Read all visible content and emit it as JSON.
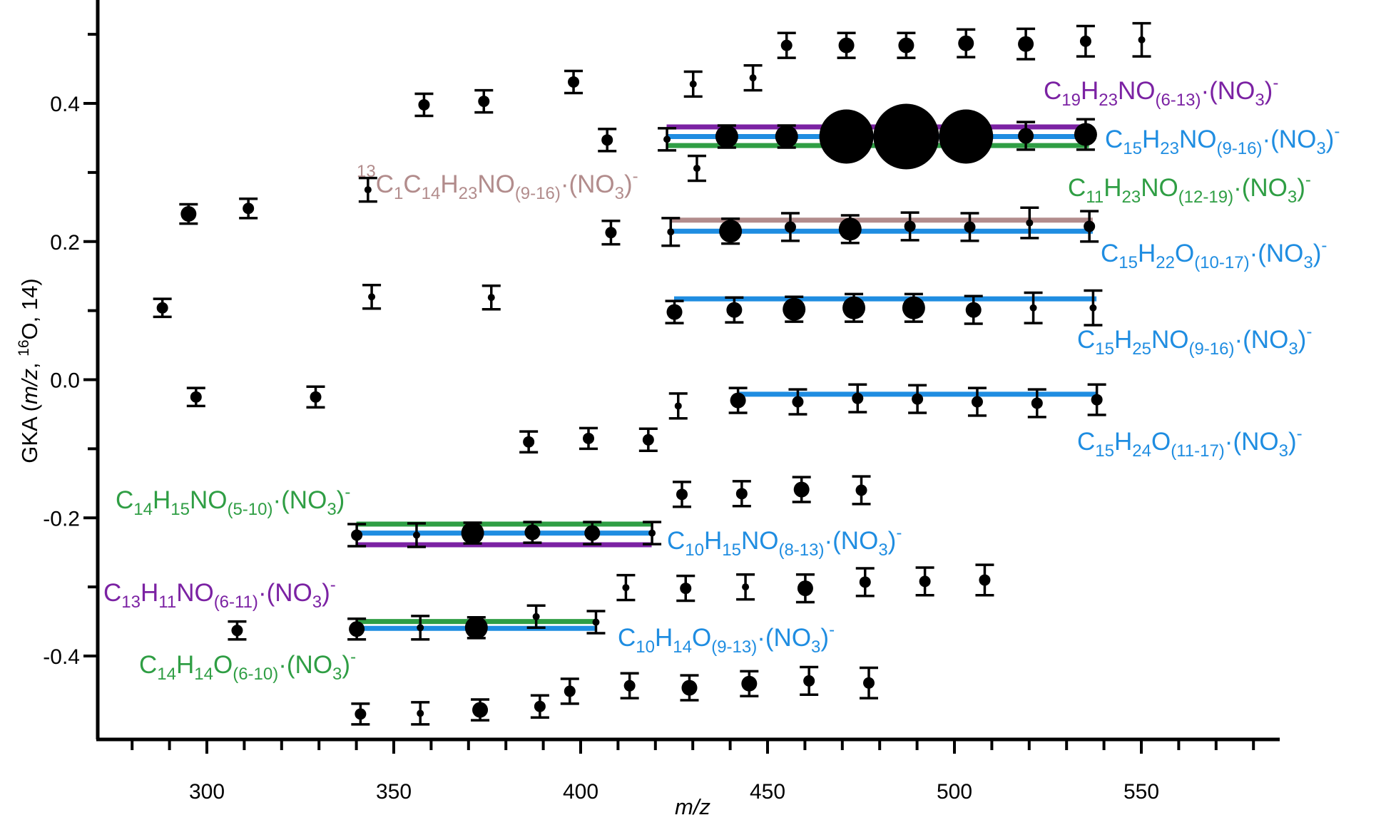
{
  "chart_data": {
    "type": "scatter",
    "xlabel": "m/z",
    "ylabel": "GKA (m/z, 16O, 14)",
    "xlim": [
      270,
      580
    ],
    "ylim": [
      -0.52,
      0.57
    ],
    "x_ticks": [
      300,
      350,
      400,
      450,
      500,
      550
    ],
    "y_ticks": [
      0.4,
      0.2,
      0.0,
      -0.2,
      -0.4
    ],
    "x_tick_labels": [
      "300",
      "350",
      "400",
      "450",
      "500",
      "550"
    ],
    "y_tick_labels": [
      "0.4",
      "0.2",
      "0.0",
      "-0.2",
      "-0.4"
    ],
    "points": [
      {
        "x": 288.1,
        "y": 0.104,
        "err": 0.013,
        "size": "m"
      },
      {
        "x": 295.1,
        "y": 0.24,
        "err": 0.014,
        "size": "l"
      },
      {
        "x": 297.1,
        "y": -0.025,
        "err": 0.013,
        "size": "m"
      },
      {
        "x": 308.1,
        "y": -0.363,
        "err": 0.013,
        "size": "m"
      },
      {
        "x": 311.1,
        "y": 0.248,
        "err": 0.014,
        "size": "m"
      },
      {
        "x": 329.1,
        "y": -0.025,
        "err": 0.015,
        "size": "m"
      },
      {
        "x": 340.1,
        "y": -0.361,
        "err": 0.015,
        "size": "l"
      },
      {
        "x": 340.1,
        "y": -0.225,
        "err": 0.016,
        "size": "m"
      },
      {
        "x": 341.1,
        "y": -0.484,
        "err": 0.015,
        "size": "m"
      },
      {
        "x": 343.1,
        "y": 0.275,
        "err": 0.017,
        "size": "s"
      },
      {
        "x": 344.1,
        "y": 0.12,
        "err": 0.017,
        "size": "s"
      },
      {
        "x": 356.1,
        "y": -0.225,
        "err": 0.017,
        "size": "s"
      },
      {
        "x": 357.1,
        "y": -0.359,
        "err": 0.017,
        "size": "s"
      },
      {
        "x": 357.1,
        "y": -0.483,
        "err": 0.016,
        "size": "s"
      },
      {
        "x": 358.1,
        "y": 0.398,
        "err": 0.016,
        "size": "m"
      },
      {
        "x": 371.1,
        "y": -0.222,
        "err": 0.015,
        "size": "xl"
      },
      {
        "x": 372.1,
        "y": -0.359,
        "err": 0.015,
        "size": "xl"
      },
      {
        "x": 373.1,
        "y": -0.478,
        "err": 0.015,
        "size": "l"
      },
      {
        "x": 374.1,
        "y": 0.403,
        "err": 0.016,
        "size": "m"
      },
      {
        "x": 376.1,
        "y": 0.119,
        "err": 0.017,
        "size": "s"
      },
      {
        "x": 386.1,
        "y": -0.09,
        "err": 0.015,
        "size": "m"
      },
      {
        "x": 387.1,
        "y": -0.221,
        "err": 0.015,
        "size": "l"
      },
      {
        "x": 388.1,
        "y": -0.343,
        "err": 0.016,
        "size": "s"
      },
      {
        "x": 389.1,
        "y": -0.473,
        "err": 0.016,
        "size": "m"
      },
      {
        "x": 397.1,
        "y": -0.451,
        "err": 0.018,
        "size": "m"
      },
      {
        "x": 398.1,
        "y": 0.431,
        "err": 0.016,
        "size": "m"
      },
      {
        "x": 402.1,
        "y": -0.085,
        "err": 0.015,
        "size": "m"
      },
      {
        "x": 403.1,
        "y": -0.222,
        "err": 0.016,
        "size": "l"
      },
      {
        "x": 404.1,
        "y": -0.351,
        "err": 0.016,
        "size": "s"
      },
      {
        "x": 407.1,
        "y": 0.347,
        "err": 0.016,
        "size": "m"
      },
      {
        "x": 408.1,
        "y": 0.213,
        "err": 0.017,
        "size": "m"
      },
      {
        "x": 412.1,
        "y": -0.301,
        "err": 0.018,
        "size": "s"
      },
      {
        "x": 413.1,
        "y": -0.443,
        "err": 0.018,
        "size": "m"
      },
      {
        "x": 418.1,
        "y": -0.087,
        "err": 0.016,
        "size": "m"
      },
      {
        "x": 419.1,
        "y": -0.222,
        "err": 0.016,
        "size": "s"
      },
      {
        "x": 423.1,
        "y": 0.348,
        "err": 0.016,
        "size": "s"
      },
      {
        "x": 424.1,
        "y": 0.214,
        "err": 0.02,
        "size": "s"
      },
      {
        "x": 425.1,
        "y": 0.098,
        "err": 0.016,
        "size": "l"
      },
      {
        "x": 426.1,
        "y": -0.038,
        "err": 0.018,
        "size": "s"
      },
      {
        "x": 427.1,
        "y": -0.166,
        "err": 0.018,
        "size": "m"
      },
      {
        "x": 428.1,
        "y": -0.302,
        "err": 0.018,
        "size": "m"
      },
      {
        "x": 429.1,
        "y": -0.446,
        "err": 0.018,
        "size": "l"
      },
      {
        "x": 430.1,
        "y": 0.428,
        "err": 0.018,
        "size": "s"
      },
      {
        "x": 431.1,
        "y": 0.306,
        "err": 0.018,
        "size": "s"
      },
      {
        "x": 439.1,
        "y": 0.352,
        "err": 0.016,
        "size": "xl"
      },
      {
        "x": 440.1,
        "y": 0.215,
        "err": 0.018,
        "size": "xl"
      },
      {
        "x": 441.1,
        "y": 0.101,
        "err": 0.018,
        "size": "l"
      },
      {
        "x": 442.1,
        "y": -0.03,
        "err": 0.018,
        "size": "l"
      },
      {
        "x": 443.1,
        "y": -0.165,
        "err": 0.018,
        "size": "m"
      },
      {
        "x": 444.1,
        "y": -0.3,
        "err": 0.018,
        "size": "s"
      },
      {
        "x": 445.1,
        "y": -0.44,
        "err": 0.018,
        "size": "l"
      },
      {
        "x": 446.1,
        "y": 0.437,
        "err": 0.018,
        "size": "s"
      },
      {
        "x": 455.1,
        "y": 0.352,
        "err": 0.016,
        "size": "xl"
      },
      {
        "x": 456.1,
        "y": 0.221,
        "err": 0.02,
        "size": "m"
      },
      {
        "x": 457.1,
        "y": 0.102,
        "err": 0.018,
        "size": "xl"
      },
      {
        "x": 458.1,
        "y": -0.032,
        "err": 0.018,
        "size": "m"
      },
      {
        "x": 459.1,
        "y": -0.159,
        "err": 0.018,
        "size": "l"
      },
      {
        "x": 460.1,
        "y": -0.302,
        "err": 0.02,
        "size": "l"
      },
      {
        "x": 461.1,
        "y": -0.436,
        "err": 0.02,
        "size": "m"
      },
      {
        "x": 455.1,
        "y": 0.484,
        "err": 0.018,
        "size": "m"
      },
      {
        "x": 471.1,
        "y": 0.352,
        "err": 0.018,
        "size": "xxxl"
      },
      {
        "x": 472.1,
        "y": 0.218,
        "err": 0.02,
        "size": "xl"
      },
      {
        "x": 473.1,
        "y": 0.104,
        "err": 0.02,
        "size": "xl"
      },
      {
        "x": 474.1,
        "y": -0.027,
        "err": 0.02,
        "size": "m"
      },
      {
        "x": 475.1,
        "y": -0.16,
        "err": 0.02,
        "size": "m"
      },
      {
        "x": 476.1,
        "y": -0.293,
        "err": 0.02,
        "size": "m"
      },
      {
        "x": 477.1,
        "y": -0.439,
        "err": 0.022,
        "size": "m"
      },
      {
        "x": 471.1,
        "y": 0.484,
        "err": 0.018,
        "size": "l"
      },
      {
        "x": 487.1,
        "y": 0.352,
        "err": 0.02,
        "size": "xxxxl"
      },
      {
        "x": 488.1,
        "y": 0.222,
        "err": 0.02,
        "size": "m"
      },
      {
        "x": 489.1,
        "y": 0.104,
        "err": 0.02,
        "size": "xl"
      },
      {
        "x": 490.1,
        "y": -0.028,
        "err": 0.02,
        "size": "m"
      },
      {
        "x": 492.1,
        "y": -0.292,
        "err": 0.02,
        "size": "m"
      },
      {
        "x": 487.1,
        "y": 0.484,
        "err": 0.018,
        "size": "l"
      },
      {
        "x": 503.1,
        "y": 0.352,
        "err": 0.02,
        "size": "xxxl"
      },
      {
        "x": 504.1,
        "y": 0.221,
        "err": 0.02,
        "size": "m"
      },
      {
        "x": 505.1,
        "y": 0.101,
        "err": 0.02,
        "size": "l"
      },
      {
        "x": 506.1,
        "y": -0.032,
        "err": 0.02,
        "size": "m"
      },
      {
        "x": 508.1,
        "y": -0.29,
        "err": 0.022,
        "size": "m"
      },
      {
        "x": 503.1,
        "y": 0.487,
        "err": 0.02,
        "size": "l"
      },
      {
        "x": 519.1,
        "y": 0.353,
        "err": 0.02,
        "size": "l"
      },
      {
        "x": 520.1,
        "y": 0.227,
        "err": 0.022,
        "size": "s"
      },
      {
        "x": 521.1,
        "y": 0.104,
        "err": 0.022,
        "size": "s"
      },
      {
        "x": 522.1,
        "y": -0.034,
        "err": 0.02,
        "size": "m"
      },
      {
        "x": 519.1,
        "y": 0.486,
        "err": 0.022,
        "size": "l"
      },
      {
        "x": 535.1,
        "y": 0.355,
        "err": 0.022,
        "size": "xl"
      },
      {
        "x": 536.1,
        "y": 0.222,
        "err": 0.022,
        "size": "m"
      },
      {
        "x": 537.1,
        "y": 0.104,
        "err": 0.025,
        "size": "s"
      },
      {
        "x": 538.1,
        "y": -0.029,
        "err": 0.022,
        "size": "m"
      },
      {
        "x": 535.1,
        "y": 0.49,
        "err": 0.022,
        "size": "m"
      },
      {
        "x": 550.1,
        "y": 0.492,
        "err": 0.024,
        "size": "s"
      }
    ],
    "series": [
      {
        "name": "C19H23NO(6-13)·(NO3)-",
        "color": "#7b22a3",
        "x": [
          423,
          536
        ],
        "y": 0.366
      },
      {
        "name": "C15H23NO(9-16)·(NO3)-",
        "color": "#1f8de1",
        "x": [
          423,
          536
        ],
        "y": 0.352
      },
      {
        "name": "C11H23NO(12-19)·(NO3)-",
        "color": "#2f9e44",
        "x": [
          423,
          536
        ],
        "y": 0.339
      },
      {
        "name": "13C1C14H23NO(9-16)·(NO3)-",
        "color": "#b28c8c",
        "x": [
          424,
          537
        ],
        "y": 0.231
      },
      {
        "name": "C15H22O(10-17)·(NO3)-",
        "color": "#1f8de1",
        "x": [
          424,
          537
        ],
        "y": 0.215
      },
      {
        "name": "C15H25NO(9-16)·(NO3)-",
        "color": "#1f8de1",
        "x": [
          425,
          538
        ],
        "y": 0.117
      },
      {
        "name": "C15H24O(11-17)·(NO3)-",
        "color": "#1f8de1",
        "x": [
          442,
          538
        ],
        "y": -0.021
      },
      {
        "name": "C14H15NO(5-10)·(NO3)-",
        "color": "#2f9e44",
        "x": [
          340,
          419
        ],
        "y": -0.209
      },
      {
        "name": "C10H15NO(8-13)·(NO3)-",
        "color": "#1f8de1",
        "x": [
          340,
          419
        ],
        "y": -0.222
      },
      {
        "name": "C13H11NO(6-11)·(NO3)-",
        "color": "#7b22a3",
        "x": [
          340,
          419
        ],
        "y": -0.239
      },
      {
        "name": "C14H14O(6-10)·(NO3)-",
        "color": "#2f9e44",
        "x": [
          340,
          404
        ],
        "y": -0.35
      },
      {
        "name": "C10H14O(9-13)·(NO3)-",
        "color": "#1f8de1",
        "x": [
          340,
          404
        ],
        "y": -0.36
      }
    ]
  },
  "labels": {
    "l1": {
      "a": "C",
      "b": "19",
      "c": "H",
      "d": "23",
      "e": "NO",
      "f": "(6-13)",
      "g": "·(NO",
      "h": "3",
      "i": ")",
      "j": "-",
      "color": "#7b22a3"
    },
    "l2": {
      "a": "C",
      "b": "15",
      "c": "H",
      "d": "23",
      "e": "NO",
      "f": "(9-16)",
      "g": "·(NO",
      "h": "3",
      "i": ")",
      "j": "-",
      "color": "#1f8de1"
    },
    "l3": {
      "pre": "13",
      "a": "C",
      "b": "1",
      "c": "C",
      "d": "14",
      "e": "H",
      "f": "23",
      "g": "NO",
      "h": "(9-16)",
      "i": "·(NO",
      "j": "3",
      "k": ")",
      "l": "-",
      "color": "#b28c8c"
    },
    "l4": {
      "a": "C",
      "b": "11",
      "c": "H",
      "d": "23",
      "e": "NO",
      "f": "(12-19)",
      "g": "·(NO",
      "h": "3",
      "i": ")",
      "j": "-",
      "color": "#2f9e44"
    },
    "l5": {
      "a": "C",
      "b": "15",
      "c": "H",
      "d": "22",
      "e": "O",
      "f": "(10-17)",
      "g": "·(NO",
      "h": "3",
      "i": ")",
      "j": "-",
      "color": "#1f8de1"
    },
    "l6": {
      "a": "C",
      "b": "15",
      "c": "H",
      "d": "25",
      "e": "NO",
      "f": "(9-16)",
      "g": "·(NO",
      "h": "3",
      "i": ")",
      "j": "-",
      "color": "#1f8de1"
    },
    "l7": {
      "a": "C",
      "b": "15",
      "c": "H",
      "d": "24",
      "e": "O",
      "f": "(11-17)",
      "g": "·(NO",
      "h": "3",
      "i": ")",
      "j": "-",
      "color": "#1f8de1"
    },
    "l8": {
      "a": "C",
      "b": "14",
      "c": "H",
      "d": "15",
      "e": "NO",
      "f": "(5-10)",
      "g": "·(NO",
      "h": "3",
      "i": ")",
      "j": "-",
      "color": "#2f9e44"
    },
    "l9": {
      "a": "C",
      "b": "10",
      "c": "H",
      "d": "15",
      "e": "NO",
      "f": "(8-13)",
      "g": "·(NO",
      "h": "3",
      "i": ")",
      "j": "-",
      "color": "#1f8de1"
    },
    "l10": {
      "a": "C",
      "b": "13",
      "c": "H",
      "d": "11",
      "e": "NO",
      "f": "(6-11)",
      "g": "·(NO",
      "h": "3",
      "i": ")",
      "j": "-",
      "color": "#7b22a3"
    },
    "l11": {
      "a": "C",
      "b": "10",
      "c": "H",
      "d": "14",
      "e": "O",
      "f": "(9-13)",
      "g": "·(NO",
      "h": "3",
      "i": ")",
      "j": "-",
      "color": "#1f8de1"
    },
    "l12": {
      "a": "C",
      "b": "14",
      "c": "H",
      "d": "14",
      "e": "O",
      "f": "(6-10)",
      "g": "·(NO",
      "h": "3",
      "i": ")",
      "j": "-",
      "color": "#2f9e44"
    }
  },
  "axes": {
    "xlabel": "m/z",
    "ylabel_pre": "GKA (",
    "ylabel_italic": "m/z",
    "ylabel_mid": ", ",
    "ylabel_sup": "16",
    "ylabel_post": "O, 14)"
  }
}
